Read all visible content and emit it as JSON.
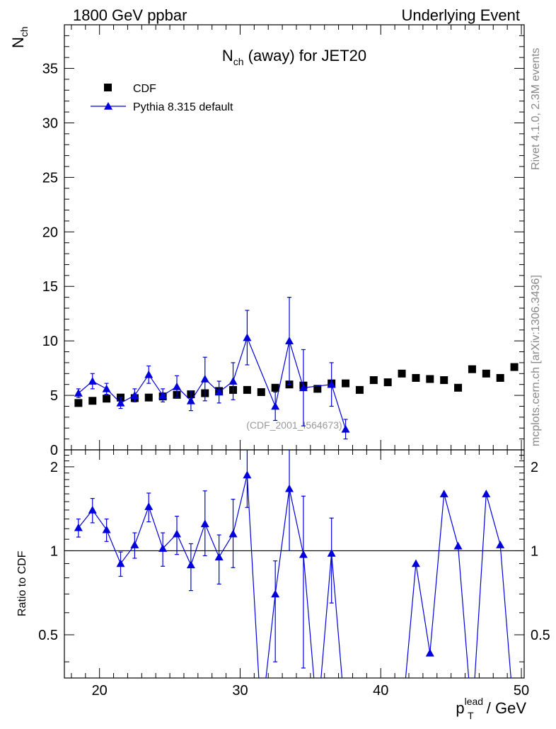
{
  "header": {
    "left": "1800 GeV ppbar",
    "right": "Underlying Event"
  },
  "side": {
    "rivet": "Rivet 4.1.0,  2.3M events",
    "mcplots": "mcplots.cern.ch [arXiv:1306.3436]"
  },
  "chart_data": [
    {
      "type": "scatter",
      "title_main": "N",
      "title_sub": "ch",
      "title_rest": " (away) for JET20",
      "ylabel_main": "N",
      "ylabel_sub": "ch",
      "watermark": "(CDF_2001_I564673)",
      "xlim": [
        17.5,
        50.2
      ],
      "ylim": [
        0,
        39
      ],
      "y_ticks": [
        0,
        5,
        10,
        15,
        20,
        25,
        30,
        35
      ],
      "y_tick_labels": [
        "0",
        "5",
        "10",
        "15",
        "20",
        "25",
        "30",
        "35"
      ],
      "legend": {
        "placement": "top-left",
        "cdf": "CDF",
        "pythia": "Pythia 8.315 default"
      },
      "series": [
        {
          "name": "CDF",
          "x": [
            18.5,
            19.5,
            20.5,
            21.5,
            22.5,
            23.5,
            24.5,
            25.5,
            26.5,
            27.5,
            28.5,
            29.5,
            30.5,
            31.5,
            32.5,
            33.5,
            34.5,
            35.5,
            36.5,
            37.5,
            38.5,
            39.5,
            40.5,
            41.5,
            42.5,
            43.5,
            44.5,
            45.5,
            46.5,
            47.5,
            48.5,
            49.5
          ],
          "y": [
            4.3,
            4.5,
            4.7,
            4.8,
            4.75,
            4.8,
            4.9,
            5.05,
            5.1,
            5.2,
            5.4,
            5.5,
            5.5,
            5.3,
            5.7,
            6.0,
            5.9,
            5.6,
            6.1,
            6.1,
            5.5,
            6.4,
            6.2,
            7.0,
            6.6,
            6.5,
            6.4,
            5.7,
            7.4,
            7.0,
            6.6,
            7.6
          ]
        },
        {
          "name": "Pythia 8.315 default",
          "x": [
            18.5,
            19.5,
            20.5,
            21.5,
            22.5,
            23.5,
            24.5,
            25.5,
            26.5,
            27.5,
            28.5,
            29.5,
            30.5,
            32.5,
            33.5,
            34.5,
            36.5,
            37.5
          ],
          "y": [
            5.2,
            6.3,
            5.6,
            4.3,
            5.0,
            6.9,
            5.0,
            5.8,
            4.5,
            6.5,
            5.3,
            6.3,
            10.3,
            4.0,
            10.0,
            5.7,
            6.0,
            1.9
          ],
          "yerr": [
            0.4,
            0.7,
            0.5,
            0.5,
            0.6,
            0.8,
            0.6,
            1.0,
            0.9,
            2.0,
            1.0,
            1.7,
            2.5,
            1.3,
            4.0,
            3.5,
            2.0,
            0.9
          ]
        }
      ]
    },
    {
      "type": "line",
      "ylabel": "Ratio to CDF",
      "xlabel_main": "p",
      "xlabel_sup": "lead",
      "xlabel_sub": "T",
      "xlabel_rest": " / GeV",
      "xlim": [
        17.5,
        50.2
      ],
      "ylim": [
        0.35,
        2.3
      ],
      "scale": "log",
      "x_ticks": [
        20,
        30,
        40,
        50
      ],
      "x_tick_labels": [
        "20",
        "30",
        "40",
        "50"
      ],
      "y_ticks": [
        0.5,
        1,
        2
      ],
      "y_tick_labels": [
        "0.5",
        "1",
        "2"
      ],
      "reference": 1,
      "series": [
        {
          "name": "Pythia 8.315 default / CDF",
          "x": [
            18.5,
            19.5,
            20.5,
            21.5,
            22.5,
            23.5,
            24.5,
            25.5,
            26.5,
            27.5,
            28.5,
            29.5,
            30.5,
            31.5,
            32.5,
            33.5,
            34.5,
            35.5,
            36.5,
            37.5,
            38.5,
            39.5,
            40.5,
            41.5,
            42.5,
            43.5,
            44.5,
            45.5,
            46.5,
            47.5,
            48.5,
            49.5
          ],
          "y": [
            1.21,
            1.4,
            1.19,
            0.9,
            1.05,
            1.44,
            1.02,
            1.15,
            0.89,
            1.25,
            0.95,
            1.15,
            1.87,
            0.0,
            0.7,
            1.67,
            0.97,
            0.0,
            0.98,
            0.0,
            0.0,
            0.0,
            0.0,
            0.0,
            0.9,
            0.43,
            1.6,
            1.04,
            0.0,
            1.6,
            1.05,
            0.0
          ],
          "ylo": [
            1.12,
            1.26,
            1.08,
            0.81,
            0.94,
            1.27,
            0.88,
            0.97,
            0.72,
            0.96,
            0.76,
            0.87,
            1.43,
            null,
            0.4,
            1.0,
            0.38,
            null,
            0.65,
            null,
            null,
            null,
            null,
            null,
            null,
            null,
            null,
            null,
            null,
            null,
            null,
            null
          ],
          "yhi": [
            1.3,
            1.54,
            1.3,
            0.99,
            1.16,
            1.61,
            1.16,
            1.33,
            1.06,
            1.64,
            1.14,
            1.53,
            2.32,
            null,
            0.92,
            2.32,
            1.57,
            null,
            1.31,
            null,
            null,
            null,
            null,
            null,
            null,
            null,
            null,
            null,
            null,
            null,
            null,
            null
          ]
        }
      ]
    }
  ]
}
